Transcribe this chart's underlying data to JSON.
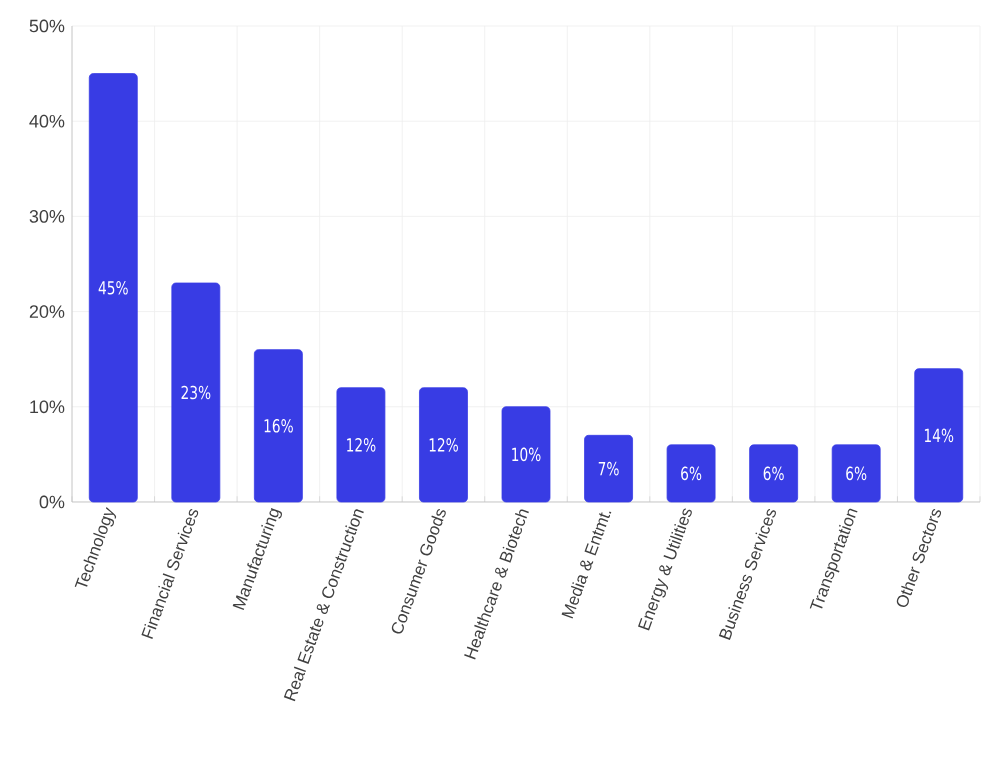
{
  "chart_data": {
    "type": "bar",
    "categories": [
      "Technology",
      "Financial Services",
      "Manufacturing",
      "Real Estate & Construction",
      "Consumer Goods",
      "Healthcare & Biotech",
      "Media & Entmt.",
      "Energy & Utilities",
      "Business Services",
      "Transportation",
      "Other Sectors"
    ],
    "values": [
      45,
      23,
      16,
      12,
      12,
      10,
      7,
      6,
      6,
      6,
      14
    ],
    "value_labels": [
      "45%",
      "23%",
      "16%",
      "12%",
      "12%",
      "10%",
      "7%",
      "6%",
      "6%",
      "6%",
      "14%"
    ],
    "color": "#383ce4",
    "ylim": [
      0,
      50
    ],
    "yticks": [
      {
        "value": 0,
        "label": "0%"
      },
      {
        "value": 10,
        "label": "10%"
      },
      {
        "value": 20,
        "label": "20%"
      },
      {
        "value": 30,
        "label": "30%"
      },
      {
        "value": 40,
        "label": "40%"
      },
      {
        "value": 50,
        "label": "50%"
      }
    ],
    "grid": true
  }
}
